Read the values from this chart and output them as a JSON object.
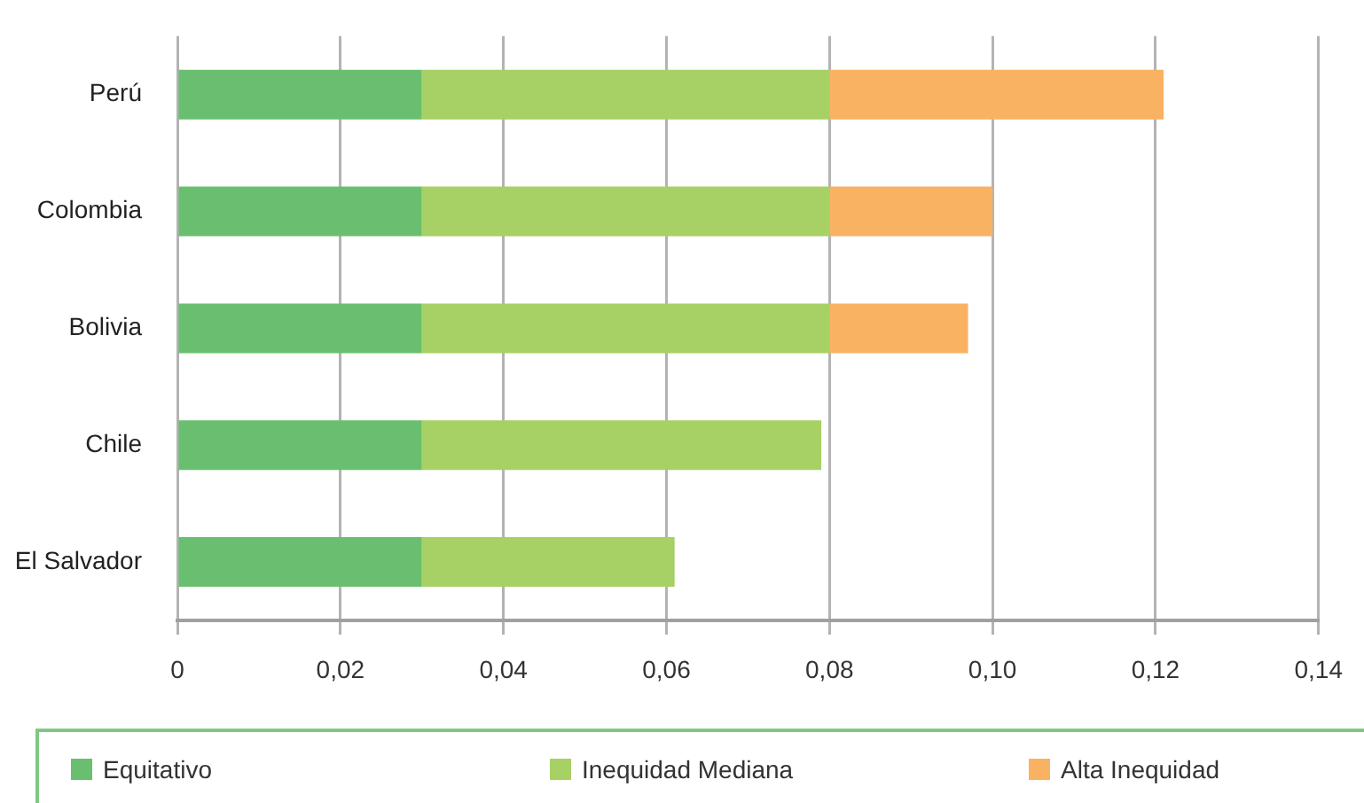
{
  "chart_data": {
    "type": "bar",
    "orientation": "horizontal",
    "stacked": true,
    "categories": [
      "Perú",
      "Colombia",
      "Bolivia",
      "Chile",
      "El Salvador"
    ],
    "series": [
      {
        "name": "Equitativo",
        "color": "#69bf6f",
        "values": [
          0.03,
          0.03,
          0.03,
          0.03,
          0.03
        ]
      },
      {
        "name": "Inequidad Mediana",
        "color": "#a7d065",
        "values": [
          0.05,
          0.05,
          0.05,
          0.049,
          0.031
        ]
      },
      {
        "name": "Alta Inequidad",
        "color": "#f8b262",
        "values": [
          0.041,
          0.02,
          0.017,
          null,
          null
        ]
      }
    ],
    "xlim": [
      0,
      0.14
    ],
    "xticks": [
      0,
      {
        "value": 0.02,
        "label": "0,02"
      },
      {
        "value": 0.04,
        "label": "0,04"
      },
      {
        "value": 0.06,
        "label": "0,06"
      },
      {
        "value": 0.08,
        "label": "0,08"
      },
      {
        "value": 0.1,
        "label": "0,10"
      },
      {
        "value": 0.12,
        "label": "0,12"
      },
      {
        "value": 0.14,
        "label": "0,14"
      }
    ],
    "grid": "x",
    "legend": "bottom"
  }
}
